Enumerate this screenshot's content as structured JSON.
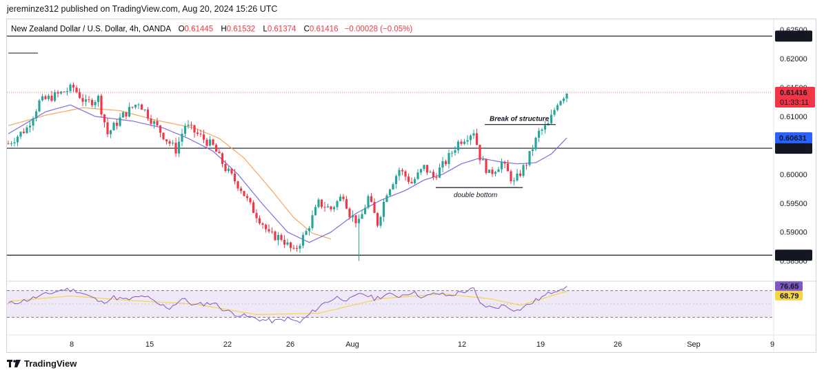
{
  "header": {
    "publisher_line": "jereminze312 published on TradingView.com, Aug 20, 2024 15:26 UTC"
  },
  "legend": {
    "symbol": "New Zealand Dollar / U.S. Dollar, 4h, OANDA",
    "open_label": "O",
    "open": "0.61445",
    "high_label": "H",
    "high": "0.61532",
    "low_label": "L",
    "low": "0.61374",
    "close_label": "C",
    "close": "0.61416",
    "change": "−0.00028 (−0.05%)"
  },
  "footer": {
    "brand": "TradingView",
    "logo_icon": "tradingview-logo-icon"
  },
  "colors": {
    "up": "#26a69a",
    "down": "#f23645",
    "ma_fast": "#7b6ee0",
    "ma_slow": "#f6a55b",
    "rsi": "#7e57c2",
    "rsi_ma": "#f5d547",
    "price_badge": "#f23645",
    "ma_badge": "#2962ff"
  },
  "chart_data": {
    "type": "candlestick",
    "timeframe": "4h",
    "y_axis_ticks": [
      "0.62500",
      "0.62000",
      "0.61500",
      "0.61000",
      "0.60500",
      "0.60000",
      "0.59500",
      "0.59000",
      "0.58500"
    ],
    "ylim": [
      0.5815,
      0.6268
    ],
    "x_axis_ticks": [
      "8",
      "15",
      "22",
      "26",
      "Aug",
      "12",
      "19",
      "26",
      "Sep",
      "9"
    ],
    "horizontal_levels": [
      {
        "value": 0.6239,
        "label": "0.62390"
      },
      {
        "value": 0.6045,
        "label": "0.60450"
      },
      {
        "value": 0.586,
        "label": "0.58600"
      }
    ],
    "last_price": {
      "value": 0.61416,
      "label": "0.61416",
      "countdown": "01:33:11"
    },
    "ma_fast_last": {
      "value": 0.60631,
      "label": "0.60631"
    },
    "annotations": [
      {
        "text": "Break of structure",
        "level": 0.6086
      },
      {
        "text": "double bottom",
        "level": 0.5977
      }
    ],
    "price_path": [
      [
        0,
        0.6053
      ],
      [
        6,
        0.608
      ],
      [
        10,
        0.6125
      ],
      [
        16,
        0.6138
      ],
      [
        21,
        0.615
      ],
      [
        25,
        0.6122
      ],
      [
        29,
        0.6132
      ],
      [
        32,
        0.607
      ],
      [
        37,
        0.6102
      ],
      [
        42,
        0.6125
      ],
      [
        46,
        0.6095
      ],
      [
        51,
        0.606
      ],
      [
        54,
        0.6042
      ],
      [
        57,
        0.6085
      ],
      [
        62,
        0.6065
      ],
      [
        66,
        0.6048
      ],
      [
        70,
        0.601
      ],
      [
        75,
        0.5975
      ],
      [
        78,
        0.5945
      ],
      [
        82,
        0.5915
      ],
      [
        84,
        0.5895
      ],
      [
        88,
        0.589
      ],
      [
        92,
        0.5865
      ],
      [
        96,
        0.59
      ],
      [
        100,
        0.595
      ],
      [
        104,
        0.594
      ],
      [
        108,
        0.5965
      ],
      [
        110,
        0.5932
      ],
      [
        113,
        0.5915
      ],
      [
        116,
        0.596
      ],
      [
        119,
        0.5915
      ],
      [
        122,
        0.597
      ],
      [
        126,
        0.6008
      ],
      [
        130,
        0.5985
      ],
      [
        134,
        0.6012
      ],
      [
        137,
        0.5995
      ],
      [
        141,
        0.6022
      ],
      [
        145,
        0.6055
      ],
      [
        150,
        0.6075
      ],
      [
        152,
        0.603
      ],
      [
        155,
        0.6
      ],
      [
        159,
        0.602
      ],
      [
        163,
        0.5985
      ],
      [
        167,
        0.602
      ],
      [
        171,
        0.6072
      ],
      [
        174,
        0.6085
      ],
      [
        177,
        0.6125
      ],
      [
        180,
        0.6142
      ]
    ],
    "ma_fast_path": [
      [
        0,
        0.607
      ],
      [
        12,
        0.6108
      ],
      [
        20,
        0.612
      ],
      [
        28,
        0.61
      ],
      [
        40,
        0.6092
      ],
      [
        50,
        0.608
      ],
      [
        58,
        0.6062
      ],
      [
        66,
        0.604
      ],
      [
        74,
        0.6
      ],
      [
        82,
        0.5948
      ],
      [
        90,
        0.59
      ],
      [
        97,
        0.5882
      ],
      [
        104,
        0.59
      ],
      [
        112,
        0.5932
      ],
      [
        120,
        0.5955
      ],
      [
        128,
        0.5972
      ],
      [
        134,
        0.599
      ],
      [
        140,
        0.6
      ],
      [
        146,
        0.6018
      ],
      [
        152,
        0.6028
      ],
      [
        158,
        0.6022
      ],
      [
        164,
        0.6018
      ],
      [
        170,
        0.602
      ],
      [
        175,
        0.6035
      ],
      [
        180,
        0.6063
      ]
    ],
    "ma_slow_path": [
      [
        0,
        0.6084
      ],
      [
        12,
        0.6102
      ],
      [
        24,
        0.6115
      ],
      [
        36,
        0.611
      ],
      [
        48,
        0.6093
      ],
      [
        60,
        0.608
      ],
      [
        68,
        0.6062
      ],
      [
        76,
        0.6028
      ],
      [
        84,
        0.5978
      ],
      [
        92,
        0.5925
      ],
      [
        98,
        0.5898
      ],
      [
        104,
        0.5888
      ]
    ],
    "rsi": {
      "last": "76.65",
      "ma_last": "68.79",
      "bands": [
        70,
        30
      ],
      "values": [
        [
          0,
          50
        ],
        [
          6,
          56
        ],
        [
          12,
          64
        ],
        [
          18,
          72
        ],
        [
          22,
          70
        ],
        [
          26,
          62
        ],
        [
          30,
          52
        ],
        [
          34,
          60
        ],
        [
          38,
          56
        ],
        [
          44,
          62
        ],
        [
          48,
          50
        ],
        [
          52,
          44
        ],
        [
          56,
          58
        ],
        [
          60,
          48
        ],
        [
          66,
          52
        ],
        [
          70,
          40
        ],
        [
          74,
          34
        ],
        [
          78,
          30
        ],
        [
          82,
          26
        ],
        [
          86,
          24
        ],
        [
          90,
          28
        ],
        [
          94,
          22
        ],
        [
          98,
          38
        ],
        [
          102,
          52
        ],
        [
          106,
          60
        ],
        [
          110,
          56
        ],
        [
          114,
          66
        ],
        [
          118,
          58
        ],
        [
          122,
          64
        ],
        [
          126,
          62
        ],
        [
          130,
          68
        ],
        [
          134,
          60
        ],
        [
          138,
          66
        ],
        [
          142,
          62
        ],
        [
          146,
          68
        ],
        [
          150,
          72
        ],
        [
          152,
          50
        ],
        [
          156,
          44
        ],
        [
          160,
          48
        ],
        [
          164,
          40
        ],
        [
          168,
          50
        ],
        [
          172,
          60
        ],
        [
          176,
          70
        ],
        [
          180,
          77
        ]
      ],
      "ma_values": [
        [
          0,
          54
        ],
        [
          20,
          62
        ],
        [
          40,
          55
        ],
        [
          60,
          50
        ],
        [
          80,
          34
        ],
        [
          100,
          36
        ],
        [
          120,
          58
        ],
        [
          140,
          65
        ],
        [
          155,
          58
        ],
        [
          165,
          48
        ],
        [
          180,
          69
        ]
      ]
    }
  }
}
